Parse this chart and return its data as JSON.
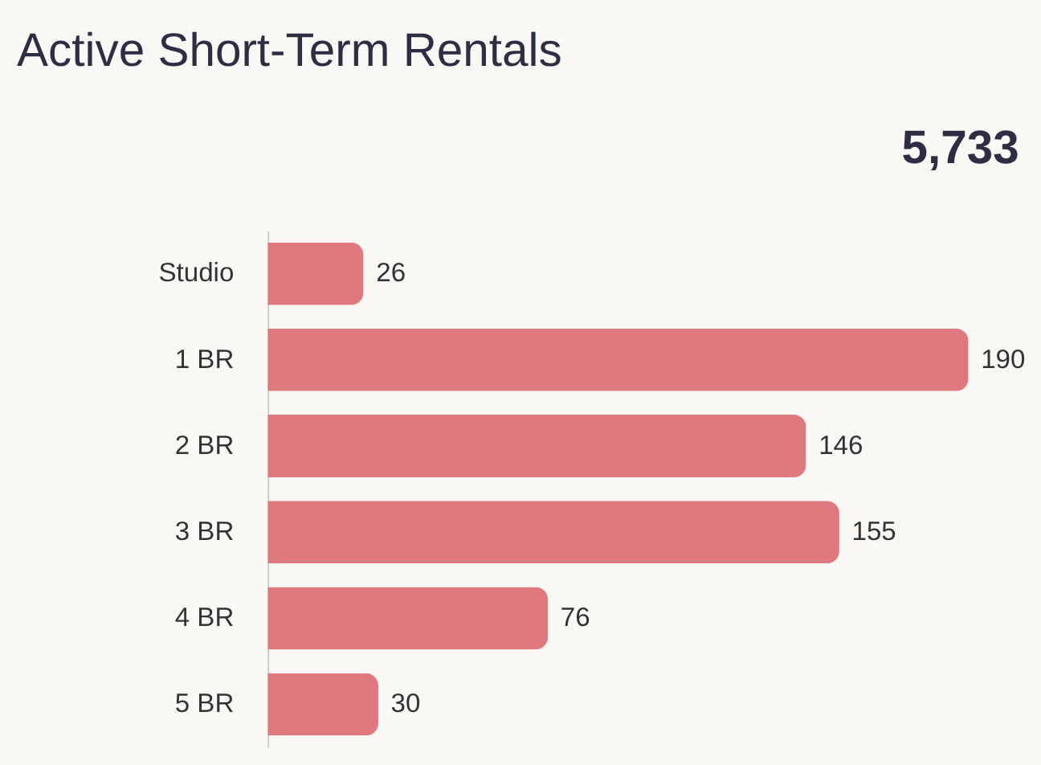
{
  "chart_data": {
    "type": "bar",
    "orientation": "horizontal",
    "title": "Active Short-Term Rentals",
    "annotations": [
      "5,733"
    ],
    "categories": [
      "Studio",
      "1 BR",
      "2 BR",
      "3 BR",
      "4 BR",
      "5 BR"
    ],
    "values": [
      26,
      190,
      146,
      155,
      76,
      30
    ],
    "color": "#e07880",
    "data_labels": true,
    "grid": false,
    "tick_labels": "y"
  }
}
